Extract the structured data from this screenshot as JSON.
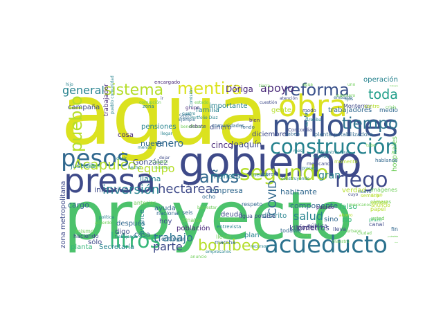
{
  "palette": {
    "purple": "#440154",
    "indigo": "#3e4a89",
    "blue": "#31688e",
    "teal": "#26828e",
    "seagreen": "#1f9e89",
    "green": "#35b779",
    "lightgreen": "#6ece58",
    "lime": "#b5de2b",
    "yellow": "#dbe21f"
  },
  "words": [
    {
      "text": "agua",
      "color": "#dbe21f"
    },
    {
      "text": "proyecto",
      "color": "#4cc26c"
    },
    {
      "text": "gobierno",
      "color": "#3e4a89"
    },
    {
      "text": "millones",
      "color": "#3b528b"
    },
    {
      "text": "obra",
      "color": "#dbe21f"
    },
    {
      "text": "presa",
      "color": "#3e4a89"
    },
    {
      "text": "construcción",
      "color": "#26828e"
    },
    {
      "text": "acueducto",
      "color": "#2c728e"
    },
    {
      "text": "litros",
      "color": "#35b779"
    },
    {
      "text": "segundo",
      "color": "#b5de2b"
    },
    {
      "text": "pesos",
      "color": "#31688e"
    },
    {
      "text": "riego",
      "color": "#3e4a89"
    },
    {
      "text": "tiempo",
      "color": "#2c728e"
    },
    {
      "text": "reforma",
      "color": "#3b528b"
    },
    {
      "text": "sistema",
      "color": "#b5de2b"
    },
    {
      "text": "mentira",
      "color": "#dbe21f"
    },
    {
      "text": "bombeo",
      "color": "#b5de2b"
    },
    {
      "text": "pueblo",
      "color": "#b5de2b"
    },
    {
      "text": "Acapulco",
      "color": "#b5de2b"
    },
    {
      "text": "años",
      "color": "#31688e"
    },
    {
      "text": "toda",
      "color": "#1f9e89"
    },
    {
      "text": "inversión",
      "color": "#26828e"
    },
    {
      "text": "hectáreas",
      "color": "#3e4a89"
    },
    {
      "text": "apoyo",
      "color": "#482878"
    },
    {
      "text": "general",
      "color": "#26828e"
    },
    {
      "text": "equipo",
      "color": "#b5de2b"
    },
    {
      "text": "trabajo",
      "color": "#2c728e"
    },
    {
      "text": "parte",
      "color": "#3e4a89"
    },
    {
      "text": "salud",
      "color": "#26828e"
    },
    {
      "text": "enero",
      "color": "#31688e"
    },
    {
      "text": "COVID",
      "color": "#31688e"
    },
    {
      "text": "gran",
      "color": "#26828e"
    },
    {
      "text": "operación",
      "color": "#26828e"
    },
    {
      "text": "Dóriga",
      "color": "#482878"
    },
    {
      "text": "cinco",
      "color": "#482878"
    },
    {
      "text": "Joaquín",
      "color": "#3e4a89"
    },
    {
      "text": "nueva",
      "color": "#31688e"
    },
    {
      "text": "llama",
      "color": "#26828e"
    },
    {
      "text": "González",
      "color": "#3e4a89"
    },
    {
      "text": "empresa",
      "color": "#31688e"
    },
    {
      "text": "manera",
      "color": "#26828e"
    },
    {
      "text": "habitante",
      "color": "#31688e"
    },
    {
      "text": "iniciativa",
      "color": "#3e4a89"
    },
    {
      "text": "componente",
      "color": "#31688e"
    },
    {
      "text": "kilómetros",
      "color": "#3e4a89"
    },
    {
      "text": "falso",
      "color": "#35b779"
    },
    {
      "text": "río",
      "color": "#35b779"
    },
    {
      "text": "sino",
      "color": "#31688e"
    },
    {
      "text": "cargo",
      "color": "#31688e"
    },
    {
      "text": "verdad",
      "color": "#b5de2b"
    },
    {
      "text": "imágenes",
      "color": "#6ece58"
    },
    {
      "text": "hospitales",
      "color": "#6ece58"
    },
    {
      "text": "zona metropolitana",
      "color": "#3e4a89"
    },
    {
      "text": "campaña",
      "color": "#3e4a89"
    },
    {
      "text": "pensiones",
      "color": "#26828e"
    },
    {
      "text": "familia",
      "color": "#26828e"
    },
    {
      "text": "importante",
      "color": "#26828e"
    },
    {
      "text": "dinero",
      "color": "#3e4a89"
    },
    {
      "text": "diciembre",
      "color": "#3e4a89"
    },
    {
      "text": "gente",
      "color": "#b5de2b"
    },
    {
      "text": "trabajadores",
      "color": "#31688e"
    },
    {
      "text": "medio",
      "color": "#31688e"
    },
    {
      "text": "ayuda",
      "color": "#31688e"
    },
    {
      "text": "hoy",
      "color": "#3e4a89"
    },
    {
      "text": "digo",
      "color": "#3e4a89"
    },
    {
      "text": "casa",
      "color": "#31688e"
    },
    {
      "text": "deuda",
      "color": "#3e4a89"
    },
    {
      "text": "distrito",
      "color": "#26828e"
    },
    {
      "text": "plan",
      "color": "#26828e"
    },
    {
      "text": "poder",
      "color": "#482878"
    },
    {
      "text": "planta",
      "color": "#35b779"
    },
    {
      "text": "Secretaría",
      "color": "#26828e"
    },
    {
      "text": "sólo",
      "color": "#3e4a89"
    },
    {
      "text": "cosa",
      "color": "#482878"
    },
    {
      "text": "justicia",
      "color": "#26828e"
    },
    {
      "text": "trabajador",
      "color": "#482878"
    },
    {
      "text": "después",
      "color": "#31688e"
    },
    {
      "text": "población",
      "color": "#482878"
    },
    {
      "text": "avance",
      "color": "#26828e"
    },
    {
      "text": "nacional",
      "color": "#31688e"
    },
    {
      "text": "agua potable",
      "color": "#3e4a89"
    },
    {
      "text": "anterior",
      "color": "#6ece58"
    },
    {
      "text": "marcha",
      "color": "#31688e"
    },
    {
      "text": "llevar",
      "color": "#6ece58"
    },
    {
      "text": "todavía",
      "color": "#31688e"
    },
    {
      "text": "pública",
      "color": "#3e4a89"
    },
    {
      "text": "haciendo",
      "color": "#3e4a89"
    },
    {
      "text": "mismo",
      "color": "#6ece58"
    },
    {
      "text": "entregar",
      "color": "#31688e"
    },
    {
      "text": "Sinaloa",
      "color": "#6ece58"
    },
    {
      "text": "seis",
      "color": "#31688e"
    },
    {
      "text": "ocho",
      "color": "#31688e"
    },
    {
      "text": "respeto",
      "color": "#31688e"
    },
    {
      "text": "plazo",
      "color": "#35b779"
    },
    {
      "text": "lleva",
      "color": "#3e4a89"
    },
    {
      "text": "fin",
      "color": "#31688e"
    },
    {
      "text": "papel",
      "color": "#b5de2b"
    },
    {
      "text": "anuncio",
      "color": "#b5de2b"
    },
    {
      "text": "cámaras",
      "color": "#6ece58"
    },
    {
      "text": "beneficiar",
      "color": "#6ece58"
    },
    {
      "text": "cuyo",
      "color": "#b5de2b"
    },
    {
      "text": "estatal",
      "color": "#b5de2b"
    },
    {
      "text": "canal",
      "color": "#3e4a89"
    },
    {
      "text": "semana",
      "color": "#b5de2b"
    },
    {
      "text": "febrero",
      "color": "#31688e"
    },
    {
      "text": "cuenca",
      "color": "#26828e"
    },
    {
      "text": "mexicano",
      "color": "#3e4a89"
    },
    {
      "text": "momento",
      "color": "#b5de2b"
    },
    {
      "text": "Monterrey",
      "color": "#3e4a89"
    },
    {
      "text": "centro",
      "color": "#b5de2b"
    },
    {
      "text": "pasado",
      "color": "#482878"
    },
    {
      "text": "planta potabilizadora",
      "color": "#31688e"
    },
    {
      "text": "modo",
      "color": "#3e4a89"
    },
    {
      "text": "bien",
      "color": "#482878"
    },
    {
      "text": "fondo",
      "color": "#31688e"
    },
    {
      "text": "comunidades",
      "color": "#31688e"
    },
    {
      "text": "debate",
      "color": "#482878"
    },
    {
      "text": "encargado",
      "color": "#482878"
    },
    {
      "text": "hablando",
      "color": "#31688e"
    },
    {
      "text": "grupo",
      "color": "#482878"
    },
    {
      "text": "zona",
      "color": "#26828e"
    },
    {
      "text": "menos",
      "color": "#26828e"
    },
    {
      "text": "decir",
      "color": "#26828e"
    },
    {
      "text": "cuatro",
      "color": "#26828e"
    },
    {
      "text": "hijo",
      "color": "#26828e"
    },
    {
      "text": "saben",
      "color": "#31688e"
    },
    {
      "text": "embargo",
      "color": "#31688e"
    },
    {
      "text": "ojos",
      "color": "#31688e"
    },
    {
      "text": "Ejemplo",
      "color": "#31688e"
    },
    {
      "text": "casos",
      "color": "#31688e"
    },
    {
      "text": "caso",
      "color": "#31688e"
    },
    {
      "text": "Concordia",
      "color": "#3e4a89"
    },
    {
      "text": "ir",
      "color": "#3e4a89"
    },
    {
      "text": "cuestión",
      "color": "#3e4a89"
    },
    {
      "text": "atención",
      "color": "#3e4a89"
    },
    {
      "text": "dejar",
      "color": "#3e4a89"
    },
    {
      "text": "Comisión",
      "color": "#26828e"
    },
    {
      "text": "construyendo",
      "color": "#26828e"
    },
    {
      "text": "infraestructura",
      "color": "#26828e"
    },
    {
      "text": "vamos",
      "color": "#26828e"
    },
    {
      "text": "reciba",
      "color": "#26828e"
    },
    {
      "text": "dejaron",
      "color": "#26828e"
    },
    {
      "text": "hecho",
      "color": "#26828e"
    },
    {
      "text": "llegar",
      "color": "#26828e"
    },
    {
      "text": "Portfolio Diaz",
      "color": "#26828e"
    },
    {
      "text": "pueblo comunidad",
      "color": "#26828e"
    },
    {
      "text": "política",
      "color": "#26828e"
    },
    {
      "text": "trabajando",
      "color": "#26828e"
    },
    {
      "text": "bienestar",
      "color": "#6ece58"
    },
    {
      "text": "empresarios",
      "color": "#26828e"
    },
    {
      "text": "entrevista",
      "color": "#26828e"
    },
    {
      "text": "recursos",
      "color": "#26828e"
    },
    {
      "text": "dispuestos",
      "color": "#6ece58"
    },
    {
      "text": "anuncio",
      "color": "#6ece58"
    },
    {
      "text": "mes",
      "color": "#26828e"
    },
    {
      "text": "proceso",
      "color": "#26828e"
    },
    {
      "text": "ahorro",
      "color": "#b5de2b"
    },
    {
      "text": "Ciudad",
      "color": "#6ece58"
    },
    {
      "text": "presidentes",
      "color": "#6ece58"
    },
    {
      "text": "sistema",
      "color": "#6ece58"
    },
    {
      "text": "cantidad",
      "color": "#6ece58"
    },
    {
      "text": "tubo",
      "color": "#6ece58"
    },
    {
      "text": "mexicanos",
      "color": "#6ece58"
    },
    {
      "text": "urbano",
      "color": "#6ece58"
    },
    {
      "text": "usted",
      "color": "#6ece58"
    },
    {
      "text": "nuevo",
      "color": "#31688e"
    },
    {
      "text": "cuyo",
      "color": "#3e4a89"
    },
    {
      "text": "crisis",
      "color": "#6ece58"
    },
    {
      "text": "ingeniero",
      "color": "#6ece58"
    },
    {
      "text": "maestro",
      "color": "#6ece58"
    },
    {
      "text": "temas",
      "color": "#6ece58"
    },
    {
      "text": "mismas",
      "color": "#6ece58"
    },
    {
      "text": "acuerdo",
      "color": "#6ece58"
    },
    {
      "text": "señora",
      "color": "#6ece58"
    },
    {
      "text": "beneficiaria",
      "color": "#6ece58"
    },
    {
      "text": "Cuautla",
      "color": "#6ece58"
    },
    {
      "text": "corrupción",
      "color": "#6ece58"
    },
    {
      "text": "estado",
      "color": "#6ece58"
    },
    {
      "text": "tierra",
      "color": "#6ece58"
    },
    {
      "text": "agua",
      "color": "#6ece58"
    },
    {
      "text": "uno",
      "color": "#6ece58"
    },
    {
      "text": "trabajos",
      "color": "#6ece58"
    }
  ]
}
